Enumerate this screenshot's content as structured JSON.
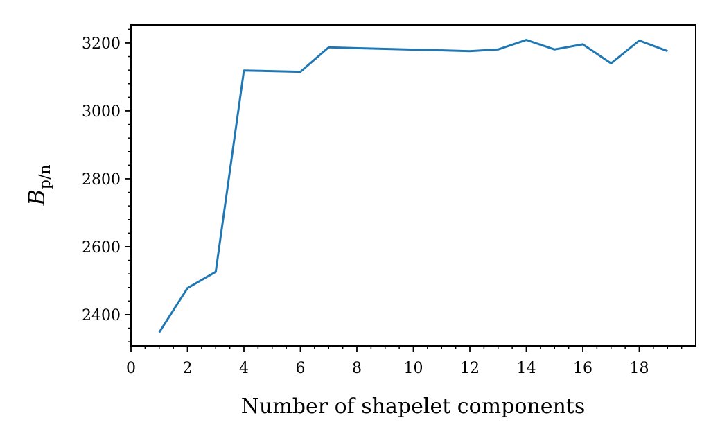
{
  "chart_data": {
    "type": "line",
    "xlabel": "Number of shapelet components",
    "ylabel_main": "B",
    "ylabel_sub": "p/n",
    "xlim": [
      0,
      20
    ],
    "ylim": [
      2308,
      3253
    ],
    "x_ticks": [
      0,
      2,
      4,
      6,
      8,
      10,
      12,
      14,
      16,
      18
    ],
    "x_minor_step": 0.5,
    "y_ticks": [
      2400,
      2600,
      2800,
      3000,
      3200
    ],
    "y_minor_step": 40,
    "grid": false,
    "line_color": "#1f77b4",
    "series": [
      {
        "x": [
          1,
          2,
          3,
          4,
          6,
          7,
          12,
          13,
          14,
          15,
          16,
          17,
          18,
          19
        ],
        "y": [
          2348,
          2478,
          2526,
          3119,
          3115,
          3187,
          3176,
          3181,
          3209,
          3181,
          3196,
          3140,
          3207,
          3176
        ]
      }
    ]
  }
}
